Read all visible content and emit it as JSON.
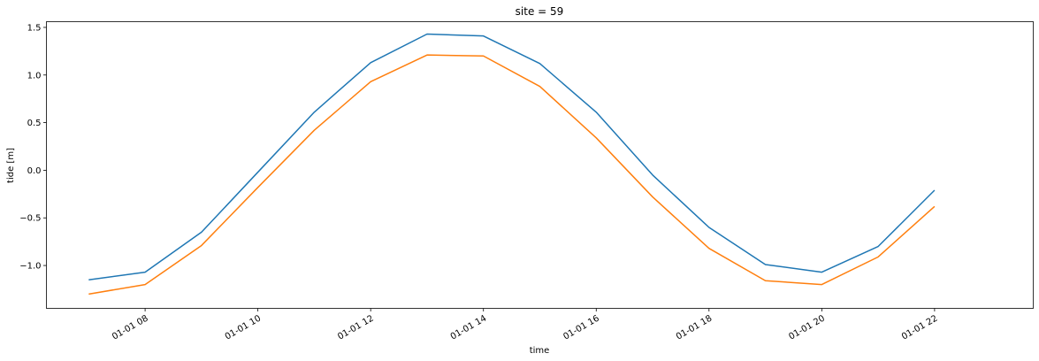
{
  "chart_data": {
    "type": "line",
    "title": "site = 59",
    "xlabel": "time",
    "ylabel": "tide [m]",
    "x": [
      "01-01 07",
      "01-01 08",
      "01-01 09",
      "01-01 10",
      "01-01 11",
      "01-01 12",
      "01-01 13",
      "01-01 14",
      "01-01 15",
      "01-01 16",
      "01-01 17",
      "01-01 18",
      "01-01 19",
      "01-01 20",
      "01-01 21",
      "01-01 22"
    ],
    "x_ticks": [
      "01-01 08",
      "01-01 10",
      "01-01 12",
      "01-01 14",
      "01-01 16",
      "01-01 18",
      "01-01 20",
      "01-01 22"
    ],
    "y_ticks": [
      "1.5",
      "1.0",
      "0.5",
      "0.0",
      "−0.5",
      "−1.0"
    ],
    "xlim": [
      "01-01 06:15",
      "01-01 23:45"
    ],
    "ylim": [
      -1.45,
      1.56
    ],
    "grid": false,
    "series": [
      {
        "color": "#1f77b4",
        "values": [
          -1.15,
          -1.07,
          -0.65,
          -0.02,
          0.61,
          1.13,
          1.43,
          1.41,
          1.12,
          0.61,
          -0.05,
          -0.6,
          -0.99,
          -1.07,
          -0.8,
          -0.21
        ]
      },
      {
        "color": "#ff7f0e",
        "values": [
          -1.3,
          -1.2,
          -0.79,
          -0.18,
          0.42,
          0.93,
          1.21,
          1.2,
          0.88,
          0.34,
          -0.28,
          -0.82,
          -1.16,
          -1.2,
          -0.91,
          -0.38
        ]
      }
    ]
  }
}
